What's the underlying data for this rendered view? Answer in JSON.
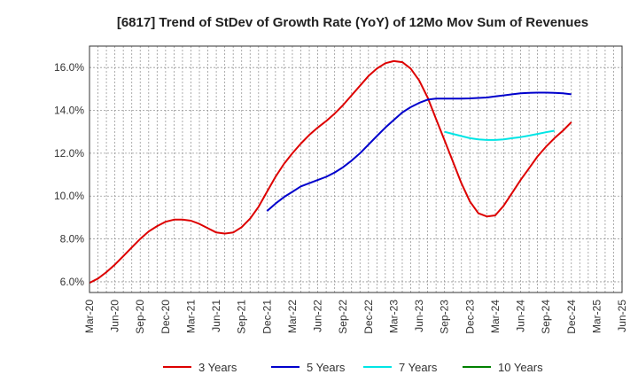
{
  "chart_data": {
    "type": "line",
    "title": "[6817]  Trend of StDev of Growth Rate (YoY) of 12Mo Mov Sum of Revenues",
    "xlabel": "",
    "ylabel": "",
    "ylim": [
      5.5,
      17.0
    ],
    "yticks": [
      6.0,
      8.0,
      10.0,
      12.0,
      14.0,
      16.0
    ],
    "ytick_labels": [
      "6.0%",
      "8.0%",
      "10.0%",
      "12.0%",
      "14.0%",
      "16.0%"
    ],
    "x_tick_labels": [
      "Mar-20",
      "Jun-20",
      "Sep-20",
      "Dec-20",
      "Mar-21",
      "Jun-21",
      "Sep-21",
      "Dec-21",
      "Mar-22",
      "Jun-22",
      "Sep-22",
      "Dec-22",
      "Mar-23",
      "Jun-23",
      "Sep-23",
      "Dec-23",
      "Mar-24",
      "Jun-24",
      "Sep-24",
      "Dec-24",
      "Mar-25",
      "Jun-25"
    ],
    "grid": true,
    "legend_position": "bottom",
    "series": [
      {
        "name": "3 Years",
        "color": "#dd0000",
        "start_index": 0,
        "values": [
          5.95,
          6.15,
          6.45,
          6.8,
          7.2,
          7.6,
          8.0,
          8.35,
          8.6,
          8.8,
          8.9,
          8.9,
          8.85,
          8.7,
          8.5,
          8.3,
          8.25,
          8.3,
          8.55,
          8.95,
          9.5,
          10.2,
          10.9,
          11.5,
          12.0,
          12.45,
          12.85,
          13.2,
          13.5,
          13.85,
          14.25,
          14.7,
          15.15,
          15.6,
          15.95,
          16.2,
          16.3,
          16.25,
          15.95,
          15.4,
          14.6,
          13.6,
          12.6,
          11.6,
          10.6,
          9.75,
          9.2,
          9.05,
          9.1,
          9.55,
          10.15,
          10.75,
          11.3,
          11.85,
          12.3,
          12.7,
          13.05,
          13.45
        ]
      },
      {
        "name": "5 Years",
        "color": "#0000cc",
        "start_index": 21,
        "values": [
          9.3,
          9.65,
          9.95,
          10.2,
          10.45,
          10.6,
          10.75,
          10.9,
          11.1,
          11.35,
          11.65,
          12.0,
          12.4,
          12.8,
          13.2,
          13.55,
          13.9,
          14.15,
          14.35,
          14.5,
          14.55,
          14.55,
          14.55,
          14.55,
          14.56,
          14.58,
          14.6,
          14.65,
          14.7,
          14.75,
          14.8,
          14.82,
          14.83,
          14.83,
          14.82,
          14.8,
          14.75
        ]
      },
      {
        "name": "7 Years",
        "color": "#00e5e5",
        "start_index": 42,
        "values": [
          13.0,
          12.9,
          12.8,
          12.7,
          12.65,
          12.62,
          12.62,
          12.65,
          12.7,
          12.75,
          12.82,
          12.9,
          12.98,
          13.05
        ]
      },
      {
        "name": "10 Years",
        "color": "#008000",
        "start_index": 0,
        "values": []
      }
    ]
  }
}
